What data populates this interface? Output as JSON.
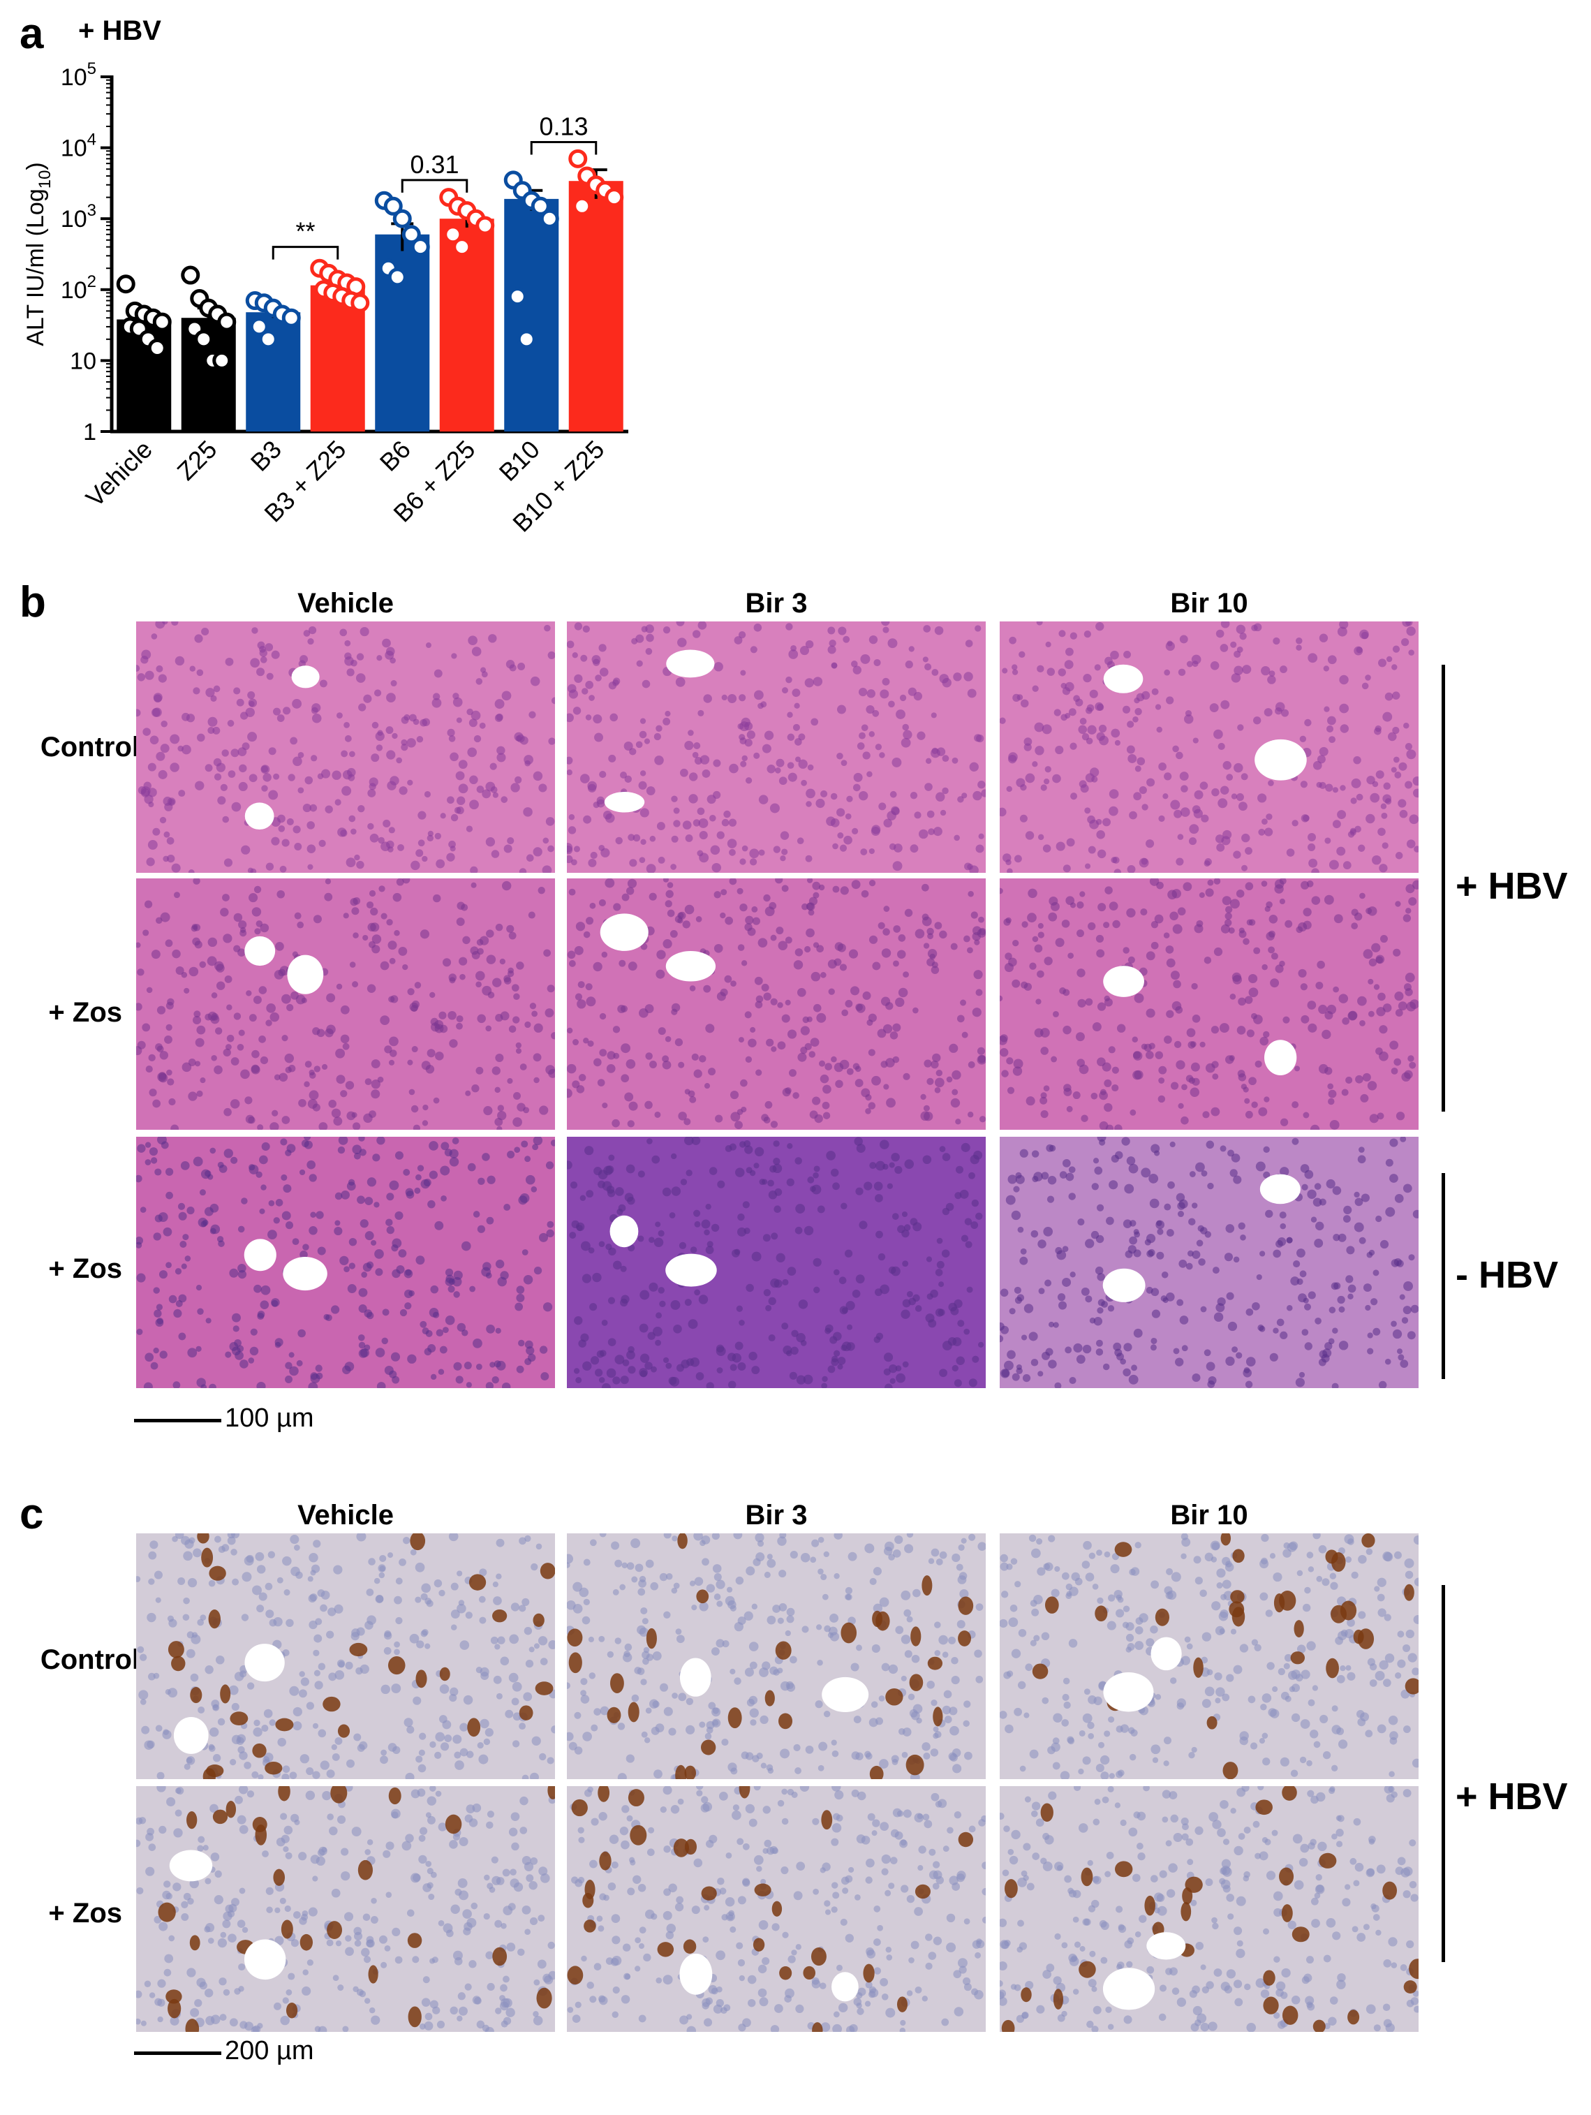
{
  "panel_a": {
    "label": "a",
    "header": "+ HBV",
    "chart_data": {
      "type": "bar",
      "title": "",
      "xlabel": "",
      "ylabel": "ALT IU/ml (Log10)",
      "ylabel_text": "ALT IU/ml (Log",
      "ylabel_sub": "10",
      "ylabel_close": ")",
      "yscale": "log",
      "ylim": [
        1,
        100000
      ],
      "yticks": [
        {
          "value": 1,
          "base": "1",
          "exp": ""
        },
        {
          "value": 10,
          "base": "10",
          "exp": ""
        },
        {
          "value": 100,
          "base": "10",
          "exp": "2"
        },
        {
          "value": 1000,
          "base": "10",
          "exp": "3"
        },
        {
          "value": 10000,
          "base": "10",
          "exp": "4"
        },
        {
          "value": 100000,
          "base": "10",
          "exp": "5"
        }
      ],
      "categories": [
        "Vehicle",
        "Z25",
        "B3",
        "B3 + Z25",
        "B6",
        "B6 + Z25",
        "B10",
        "B10 + Z25"
      ],
      "values": [
        38,
        40,
        48,
        115,
        600,
        1000,
        1900,
        3400
      ],
      "errors": [
        7,
        15,
        8,
        18,
        250,
        250,
        600,
        1500
      ],
      "bar_colors": [
        "#000000",
        "#000000",
        "#0a4da0",
        "#fc2a1c",
        "#0a4da0",
        "#fc2a1c",
        "#0a4da0",
        "#fc2a1c"
      ],
      "points": [
        [
          120,
          50,
          45,
          40,
          35,
          30,
          28,
          20,
          15
        ],
        [
          160,
          75,
          55,
          45,
          35,
          28,
          20,
          10,
          10
        ],
        [
          70,
          65,
          55,
          45,
          40,
          30,
          20
        ],
        [
          200,
          170,
          140,
          125,
          110,
          100,
          90,
          80,
          70,
          65
        ],
        [
          1800,
          1500,
          1000,
          600,
          400,
          200,
          150
        ],
        [
          2000,
          1500,
          1300,
          1000,
          800,
          600,
          400
        ],
        [
          3500,
          2500,
          1800,
          1500,
          1000,
          80,
          20
        ],
        [
          7000,
          4000,
          3000,
          2500,
          2000,
          1500
        ]
      ],
      "significance": [
        {
          "from": 2,
          "to": 3,
          "label": "**",
          "y": 400
        },
        {
          "from": 4,
          "to": 5,
          "label": "0.31",
          "y": 3500
        },
        {
          "from": 6,
          "to": 7,
          "label": "0.13",
          "y": 12000
        }
      ]
    }
  },
  "panel_b": {
    "label": "b",
    "columns": [
      "Vehicle",
      "Bir 3",
      "Bir 10"
    ],
    "rows": [
      "Control",
      "+ Zos",
      "+ Zos"
    ],
    "group_labels": [
      "+ HBV",
      "- HBV"
    ],
    "scale_bar": "100 µm",
    "stain_colors": [
      "#d26fb5",
      "#c35aab",
      "#b76aae"
    ]
  },
  "panel_c": {
    "label": "c",
    "columns": [
      "Vehicle",
      "Bir 3",
      "Bir 10"
    ],
    "rows": [
      "Control",
      "+ Zos"
    ],
    "group_label": "+ HBV",
    "scale_bar": "200 µm",
    "stain_colors": [
      "#cfc8d6",
      "#7a3a12"
    ]
  }
}
